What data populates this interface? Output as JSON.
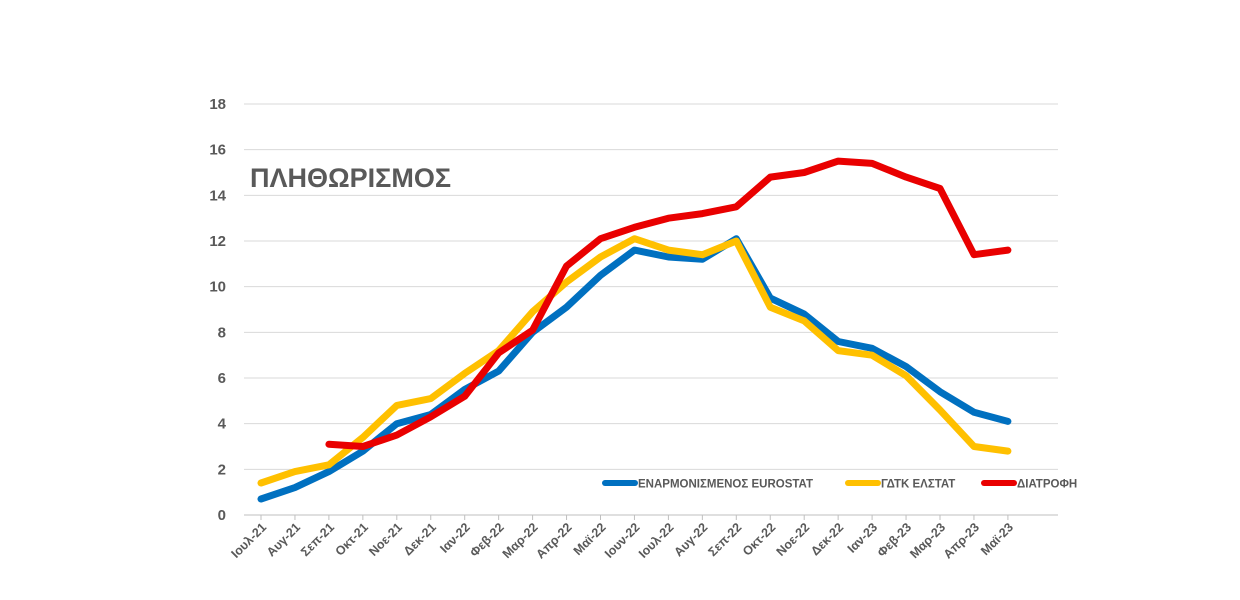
{
  "chart_data": {
    "type": "line",
    "title": "ΠΛΗΘΩΡΙΣΜΟΣ",
    "xlabel": "",
    "ylabel": "",
    "ylim": [
      0,
      18
    ],
    "yticks": [
      "0",
      "2",
      "4",
      "6",
      "8",
      "10",
      "12",
      "14",
      "16",
      "18"
    ],
    "grid": true,
    "legend_position": "bottom-right",
    "categories": [
      "Ιουλ-21",
      "Αυγ-21",
      "Σεπ-21",
      "Οκτ-21",
      "Νοε-21",
      "Δεκ-21",
      "Ιαν-22",
      "Φεβ-22",
      "Μαρ-22",
      "Απρ-22",
      "Μαϊ-22",
      "Ιουν-22",
      "Ιουλ-22",
      "Αυγ-22",
      "Σεπ-22",
      "Οκτ-22",
      "Νοε-22",
      "Δεκ-22",
      "Ιαν-23",
      "Φεβ-23",
      "Μαρ-23",
      "Απρ-23",
      "Μαϊ-23"
    ],
    "series": [
      {
        "name": "ΕΝΑΡΜΟΝΙΣΜΕΝΟΣ EUROSTAT",
        "color": "#0070C0",
        "values": [
          0.7,
          1.2,
          1.9,
          2.8,
          4.0,
          4.4,
          5.5,
          6.3,
          8.0,
          9.1,
          10.5,
          11.6,
          11.3,
          11.2,
          12.1,
          9.5,
          8.8,
          7.6,
          7.3,
          6.5,
          5.4,
          4.5,
          4.1
        ]
      },
      {
        "name": "ΓΔΤΚ ΕΛΣΤΑΤ",
        "color": "#FFC000",
        "values": [
          1.4,
          1.9,
          2.2,
          3.4,
          4.8,
          5.1,
          6.2,
          7.2,
          8.9,
          10.2,
          11.3,
          12.1,
          11.6,
          11.4,
          12.0,
          9.1,
          8.5,
          7.2,
          7.0,
          6.1,
          4.6,
          3.0,
          2.8
        ]
      },
      {
        "name": "ΔΙΑΤΡΟΦΗ",
        "color": "#E90000",
        "values": [
          null,
          null,
          3.1,
          3.0,
          3.5,
          4.3,
          5.2,
          7.1,
          8.1,
          10.9,
          12.1,
          12.6,
          13.0,
          13.2,
          13.5,
          14.8,
          15.0,
          15.5,
          15.4,
          14.8,
          14.3,
          11.4,
          11.6
        ]
      }
    ]
  }
}
